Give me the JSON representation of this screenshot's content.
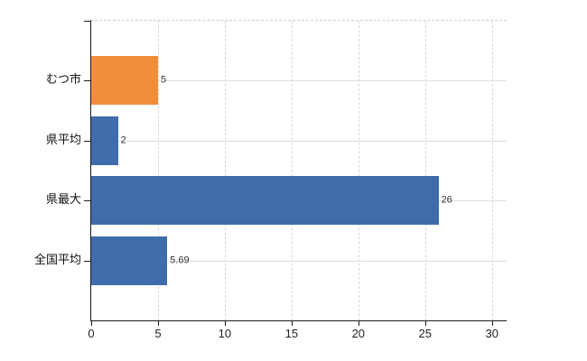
{
  "chart_data": {
    "type": "bar",
    "orientation": "horizontal",
    "title": "",
    "xlabel": "",
    "ylabel": "",
    "legend": "none",
    "grid": true,
    "categories": [
      "むつ市",
      "県平均",
      "県最大",
      "全国平均"
    ],
    "values": [
      5,
      2,
      26,
      5.69
    ],
    "value_labels": [
      "5",
      "2",
      "26",
      "5.69"
    ],
    "bar_colors": [
      "#f08e3c",
      "#3f6caa",
      "#3f6caa",
      "#3f6caa"
    ],
    "highlight_color": "#f08e3c",
    "series_color": "#3f6caa",
    "x_ticks": [
      0,
      5,
      10,
      15,
      20,
      25,
      30
    ],
    "xlim": [
      0,
      31.1
    ]
  },
  "colors": {
    "background": "#ffffff",
    "axis": "#1a1a1a",
    "gridline_vertical": "#d6dad6",
    "gridline_horizontal": "#dbe0db",
    "plot_top_border": "#c9cec9",
    "value_label_text": "#333333",
    "tick_label_text": "#222222",
    "category_label_text": "#111111"
  }
}
